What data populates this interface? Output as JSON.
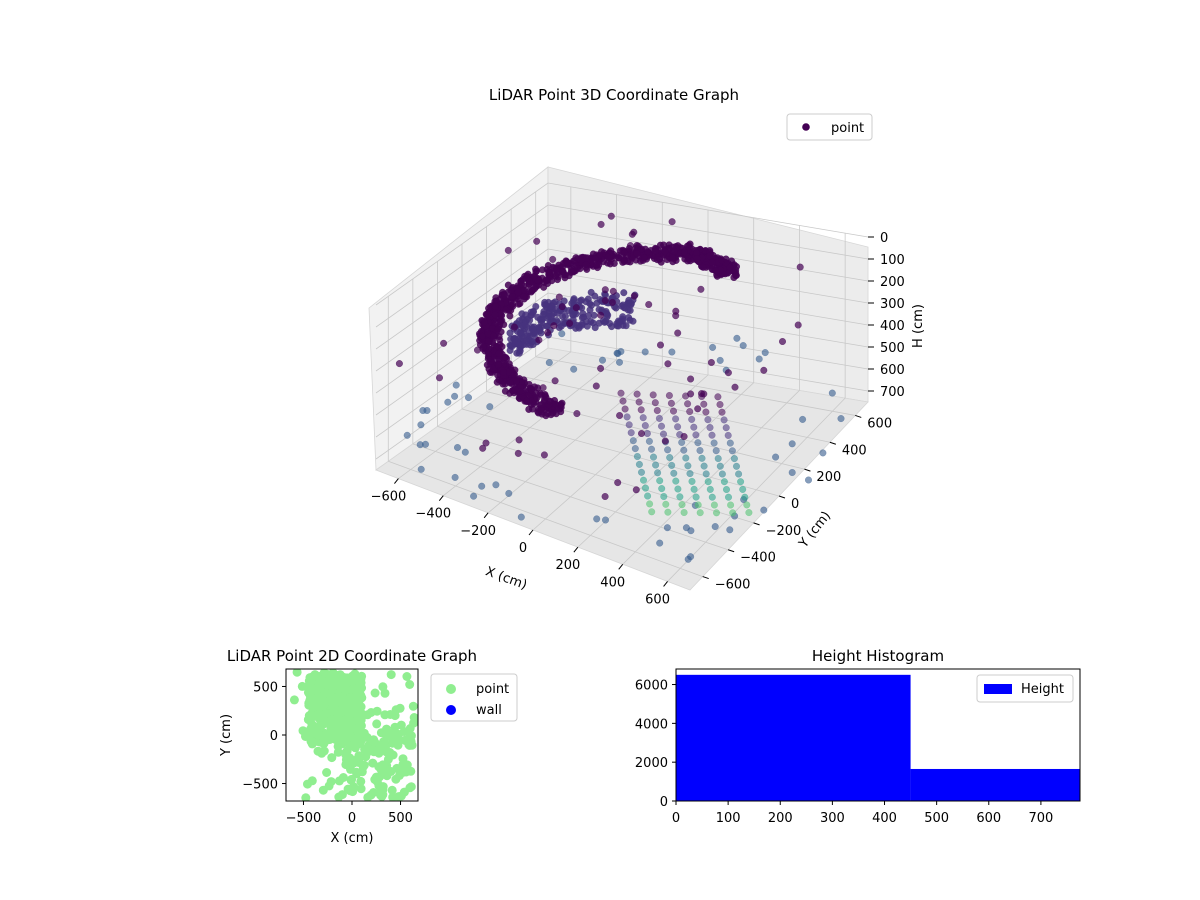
{
  "chart_data": [
    {
      "type": "scatter",
      "title": "LiDAR Point 3D Coordinate Graph",
      "xlabel": "X (cm)",
      "ylabel": "Y (cm)",
      "zlabel": "H (cm)",
      "xlim": [
        -700,
        700
      ],
      "ylim": [
        -700,
        700
      ],
      "zlim": [
        0,
        750
      ],
      "z_inverted": true,
      "x_ticks": [
        "−600",
        "−400",
        "−200",
        "0",
        "200",
        "400",
        "600"
      ],
      "y_ticks": [
        "−600",
        "−400",
        "−200",
        "0",
        "200",
        "400",
        "600"
      ],
      "z_ticks": [
        "0",
        "100",
        "200",
        "300",
        "400",
        "500",
        "600",
        "700"
      ],
      "grid": true,
      "colormap": [
        "#440154",
        "#46327e",
        "#365c8d",
        "#277f8e",
        "#1fa187",
        "#4ac16d"
      ],
      "legend": {
        "entries": [
          {
            "name": "point",
            "color": "#440154"
          }
        ],
        "placement": "top-right"
      },
      "series": [
        {
          "name": "point",
          "shape": "helical wall, radius ~450 cm, dense",
          "z_range": [
            0,
            450
          ]
        },
        {
          "name": "point",
          "shape": "vertical columns, x 400 to 700",
          "z_range": [
            0,
            700
          ]
        },
        {
          "name": "point",
          "shape": "sparse floor ring, radius ~700",
          "z_range": [
            650,
            750
          ]
        }
      ]
    },
    {
      "type": "scatter",
      "title": "LiDAR Point 2D Coordinate Graph",
      "xlabel": "X (cm)",
      "ylabel": "Y (cm)",
      "xlim": [
        -680,
        680
      ],
      "ylim": [
        -680,
        680
      ],
      "x_ticks": [
        "−500",
        "0",
        "500"
      ],
      "y_ticks": [
        "500",
        "0",
        "−500"
      ],
      "legend": {
        "entries": [
          {
            "name": "point",
            "color": "#90ee90"
          },
          {
            "name": "wall",
            "color": "#0000ff"
          }
        ],
        "placement": "outside-right"
      },
      "series": [
        {
          "name": "point",
          "color": "#90ee90",
          "shape": "filled blob across x -550 to 650, y -650 to 650"
        },
        {
          "name": "wall",
          "color": "#0000ff",
          "values": []
        }
      ]
    },
    {
      "type": "bar",
      "title": "Height Histogram",
      "xlabel": "",
      "ylabel": "",
      "x_ticks": [
        "0",
        "100",
        "200",
        "300",
        "400",
        "500",
        "600",
        "700"
      ],
      "y_ticks": [
        "0",
        "2000",
        "4000",
        "6000"
      ],
      "xlim": [
        0,
        775
      ],
      "ylim": [
        0,
        6800
      ],
      "bins": [
        {
          "x0": 0,
          "x1": 450,
          "value": 6500
        },
        {
          "x0": 450,
          "x1": 775,
          "value": 1650
        }
      ],
      "color": "#0000ff",
      "legend": {
        "entries": [
          {
            "name": "Height",
            "color": "#0000ff"
          }
        ],
        "placement": "top-right"
      }
    }
  ]
}
